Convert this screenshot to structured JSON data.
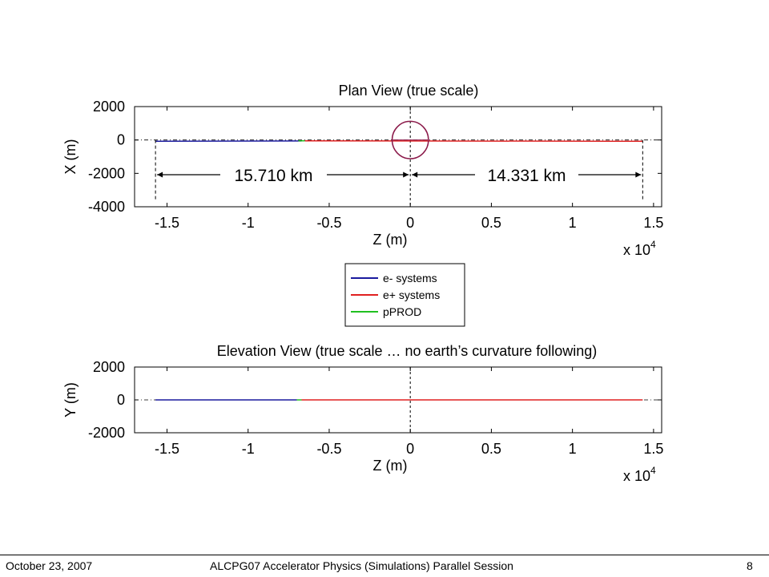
{
  "footer": {
    "date": "October 23, 2007",
    "title": "ALCPG07 Accelerator Physics (Simulations) Parallel Session",
    "page": "8"
  },
  "legend": {
    "entries": [
      {
        "label": "e- systems",
        "color": "#1a1a9e"
      },
      {
        "label": "e+ systems",
        "color": "#e02020"
      },
      {
        "label": "pPROD",
        "color": "#20c020"
      }
    ]
  },
  "chart_data": [
    {
      "type": "line",
      "title": "Plan View (true scale)",
      "xlabel": "Z (m)",
      "ylabel": "X (m)",
      "x_multiplier": "x 10",
      "x_exponent": "4",
      "xlim": [
        -17000,
        15500
      ],
      "ylim": [
        -4000,
        2000
      ],
      "xticks": [
        -15000,
        -10000,
        -5000,
        0,
        5000,
        10000,
        15000
      ],
      "xtick_labels": [
        "-1.5",
        "-1",
        "-0.5",
        "0",
        "0.5",
        "1",
        "1.5"
      ],
      "yticks": [
        2000,
        0,
        -2000,
        -4000
      ],
      "ytick_labels": [
        "2000",
        "0",
        "-2000",
        "-4000"
      ],
      "dimensions": [
        {
          "label": "15.710 km",
          "from": -15710,
          "to": 0,
          "y": -2000
        },
        {
          "label": "14.331 km",
          "from": 0,
          "to": 14331,
          "y": -2000
        }
      ],
      "series": [
        {
          "name": "e- systems",
          "color": "#1a1a9e",
          "x": [
            -15710,
            -6700
          ],
          "y": [
            -80,
            -60
          ]
        },
        {
          "name": "pPROD",
          "color": "#20c020",
          "x": [
            -6900,
            -6500
          ],
          "y": [
            -50,
            -50
          ]
        },
        {
          "name": "e+ systems",
          "color": "#e02020",
          "x": [
            -6500,
            14331
          ],
          "y": [
            -50,
            -80
          ]
        }
      ],
      "ring_radius": 1000,
      "grid": false
    },
    {
      "type": "line",
      "title": "Elevation View (true scale … no earth’s curvature following)",
      "xlabel": "Z (m)",
      "ylabel": "Y (m)",
      "x_multiplier": "x 10",
      "x_exponent": "4",
      "xlim": [
        -17000,
        15500
      ],
      "ylim": [
        -2000,
        2000
      ],
      "xticks": [
        -15000,
        -10000,
        -5000,
        0,
        5000,
        10000,
        15000
      ],
      "xtick_labels": [
        "-1.5",
        "-1",
        "-0.5",
        "0",
        "0.5",
        "1",
        "1.5"
      ],
      "yticks": [
        2000,
        0,
        -2000
      ],
      "ytick_labels": [
        "2000",
        "0",
        "-2000"
      ],
      "series": [
        {
          "name": "e- systems",
          "color": "#1a1a9e",
          "x": [
            -15710,
            -7000
          ],
          "y": [
            0,
            0
          ]
        },
        {
          "name": "pPROD",
          "color": "#20c020",
          "x": [
            -7000,
            -6700
          ],
          "y": [
            0,
            0
          ]
        },
        {
          "name": "e+ systems",
          "color": "#e02020",
          "x": [
            -6700,
            14331
          ],
          "y": [
            0,
            0
          ]
        }
      ],
      "grid": false
    }
  ]
}
